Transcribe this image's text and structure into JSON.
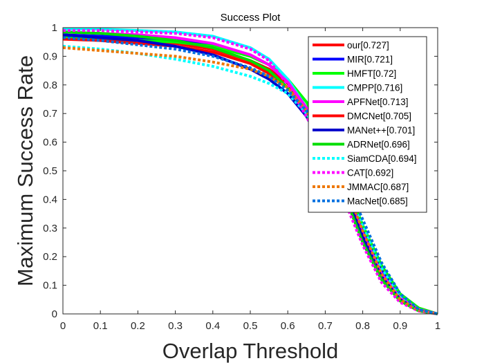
{
  "chart_data": {
    "type": "line",
    "title": "Success Plot",
    "xlabel": "Overlap Threshold",
    "ylabel": "Maximum Success Rate",
    "xlim": [
      0,
      1
    ],
    "ylim": [
      0,
      1
    ],
    "xticks": [
      "0",
      "0.1",
      "0.2",
      "0.3",
      "0.4",
      "0.5",
      "0.6",
      "0.7",
      "0.8",
      "0.9",
      "1"
    ],
    "yticks": [
      "0",
      "0.1",
      "0.2",
      "0.3",
      "0.4",
      "0.5",
      "0.6",
      "0.7",
      "0.8",
      "0.9",
      "1"
    ],
    "grid": false,
    "legend_position": "top-right",
    "series": [
      {
        "name": "our[0.727]",
        "color": "#ff0000",
        "style": "solid",
        "x": [
          0,
          0.1,
          0.2,
          0.3,
          0.4,
          0.5,
          0.55,
          0.6,
          0.65,
          0.7,
          0.75,
          0.8,
          0.85,
          0.9,
          0.95,
          1
        ],
        "y": [
          0.97,
          0.965,
          0.955,
          0.945,
          0.925,
          0.885,
          0.855,
          0.805,
          0.72,
          0.61,
          0.47,
          0.3,
          0.16,
          0.065,
          0.02,
          0
        ]
      },
      {
        "name": "MIR[0.721]",
        "color": "#0000ff",
        "style": "solid",
        "x": [
          0,
          0.1,
          0.2,
          0.3,
          0.4,
          0.5,
          0.55,
          0.6,
          0.65,
          0.7,
          0.75,
          0.8,
          0.85,
          0.9,
          0.95,
          1
        ],
        "y": [
          0.975,
          0.97,
          0.965,
          0.955,
          0.94,
          0.905,
          0.87,
          0.81,
          0.72,
          0.6,
          0.46,
          0.29,
          0.15,
          0.06,
          0.015,
          0
        ]
      },
      {
        "name": "HMFT[0.72]",
        "color": "#00ff00",
        "style": "solid",
        "x": [
          0,
          0.1,
          0.2,
          0.3,
          0.4,
          0.5,
          0.55,
          0.6,
          0.65,
          0.7,
          0.75,
          0.8,
          0.85,
          0.9,
          0.95,
          1
        ],
        "y": [
          0.965,
          0.96,
          0.955,
          0.95,
          0.935,
          0.9,
          0.87,
          0.82,
          0.74,
          0.62,
          0.48,
          0.31,
          0.17,
          0.07,
          0.02,
          0
        ]
      },
      {
        "name": "CMPP[0.716]",
        "color": "#00ffff",
        "style": "solid",
        "x": [
          0,
          0.1,
          0.2,
          0.3,
          0.4,
          0.5,
          0.55,
          0.6,
          0.65,
          0.7,
          0.75,
          0.8,
          0.85,
          0.9,
          0.95,
          1
        ],
        "y": [
          0.995,
          0.995,
          0.99,
          0.985,
          0.97,
          0.93,
          0.89,
          0.82,
          0.72,
          0.59,
          0.43,
          0.27,
          0.14,
          0.055,
          0.015,
          0
        ]
      },
      {
        "name": "APFNet[0.713]",
        "color": "#ff00ff",
        "style": "solid",
        "x": [
          0,
          0.1,
          0.2,
          0.3,
          0.4,
          0.5,
          0.55,
          0.6,
          0.65,
          0.7,
          0.75,
          0.8,
          0.85,
          0.9,
          0.95,
          1
        ],
        "y": [
          0.985,
          0.98,
          0.975,
          0.965,
          0.945,
          0.905,
          0.87,
          0.81,
          0.72,
          0.6,
          0.45,
          0.28,
          0.14,
          0.055,
          0.015,
          0
        ]
      },
      {
        "name": "DMCNet[0.705]",
        "color": "#ff0000",
        "style": "solid",
        "x": [
          0,
          0.1,
          0.2,
          0.3,
          0.4,
          0.5,
          0.55,
          0.6,
          0.65,
          0.7,
          0.75,
          0.8,
          0.85,
          0.9,
          0.95,
          1
        ],
        "y": [
          0.96,
          0.955,
          0.945,
          0.935,
          0.915,
          0.875,
          0.84,
          0.79,
          0.7,
          0.58,
          0.44,
          0.27,
          0.13,
          0.05,
          0.012,
          0
        ]
      },
      {
        "name": "MANet++[0.701]",
        "color": "#0000cc",
        "style": "solid",
        "x": [
          0,
          0.1,
          0.2,
          0.3,
          0.4,
          0.5,
          0.55,
          0.6,
          0.65,
          0.7,
          0.75,
          0.8,
          0.85,
          0.9,
          0.95,
          1
        ],
        "y": [
          0.975,
          0.965,
          0.955,
          0.935,
          0.905,
          0.855,
          0.82,
          0.77,
          0.69,
          0.57,
          0.43,
          0.27,
          0.13,
          0.05,
          0.012,
          0
        ]
      },
      {
        "name": "ADRNet[0.696]",
        "color": "#00dd00",
        "style": "solid",
        "x": [
          0,
          0.1,
          0.2,
          0.3,
          0.4,
          0.5,
          0.55,
          0.6,
          0.65,
          0.7,
          0.75,
          0.8,
          0.85,
          0.9,
          0.95,
          1
        ],
        "y": [
          0.985,
          0.98,
          0.97,
          0.955,
          0.93,
          0.885,
          0.85,
          0.79,
          0.7,
          0.57,
          0.42,
          0.25,
          0.12,
          0.045,
          0.01,
          0
        ]
      },
      {
        "name": "SiamCDA[0.694]",
        "color": "#00ffff",
        "style": "dotted",
        "x": [
          0,
          0.1,
          0.2,
          0.3,
          0.4,
          0.5,
          0.55,
          0.6,
          0.65,
          0.7,
          0.75,
          0.8,
          0.85,
          0.9,
          0.95,
          1
        ],
        "y": [
          0.935,
          0.925,
          0.91,
          0.89,
          0.865,
          0.83,
          0.805,
          0.77,
          0.7,
          0.6,
          0.47,
          0.31,
          0.16,
          0.065,
          0.015,
          0
        ]
      },
      {
        "name": "CAT[0.692]",
        "color": "#ff00ff",
        "style": "dotted",
        "x": [
          0,
          0.1,
          0.2,
          0.3,
          0.4,
          0.5,
          0.55,
          0.6,
          0.65,
          0.7,
          0.75,
          0.8,
          0.85,
          0.9,
          0.95,
          1
        ],
        "y": [
          0.99,
          0.99,
          0.985,
          0.98,
          0.965,
          0.925,
          0.885,
          0.8,
          0.69,
          0.55,
          0.4,
          0.24,
          0.11,
          0.04,
          0.01,
          0
        ]
      },
      {
        "name": "JMMAC[0.687]",
        "color": "#ee7700",
        "style": "dotted",
        "x": [
          0,
          0.1,
          0.2,
          0.3,
          0.4,
          0.5,
          0.55,
          0.6,
          0.65,
          0.7,
          0.75,
          0.8,
          0.85,
          0.9,
          0.95,
          1
        ],
        "y": [
          0.93,
          0.92,
          0.91,
          0.9,
          0.88,
          0.855,
          0.83,
          0.79,
          0.71,
          0.6,
          0.46,
          0.29,
          0.14,
          0.05,
          0.012,
          0
        ]
      },
      {
        "name": "MacNet[0.685]",
        "color": "#0070e0",
        "style": "dotted",
        "x": [
          0,
          0.1,
          0.2,
          0.3,
          0.4,
          0.5,
          0.55,
          0.6,
          0.65,
          0.7,
          0.75,
          0.8,
          0.85,
          0.9,
          0.95,
          1
        ],
        "y": [
          0.965,
          0.955,
          0.94,
          0.925,
          0.9,
          0.86,
          0.83,
          0.78,
          0.71,
          0.61,
          0.48,
          0.33,
          0.18,
          0.07,
          0.015,
          0
        ]
      }
    ]
  }
}
